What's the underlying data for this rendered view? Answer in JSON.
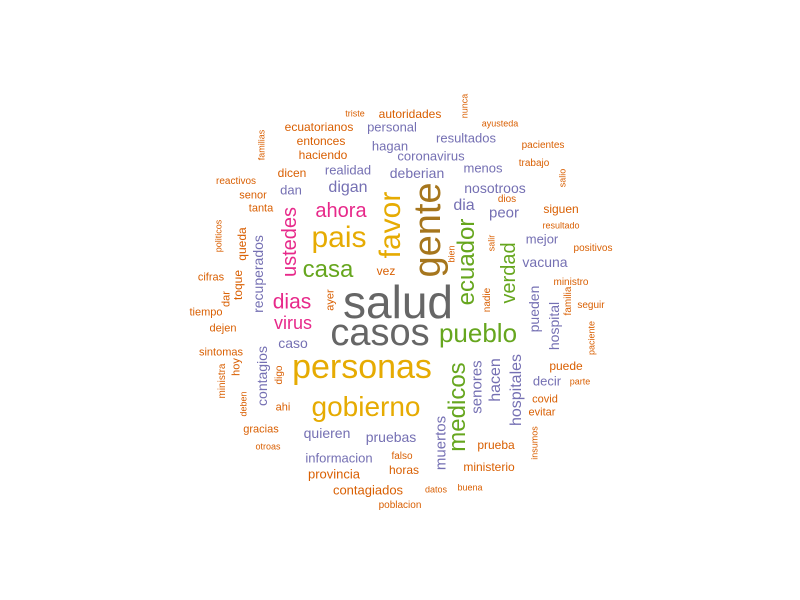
{
  "colors": {
    "gray": "#666666",
    "olive": "#A6761D",
    "gold": "#E6AB02",
    "green": "#66A61E",
    "magenta": "#E7298A",
    "purple": "#7570B3",
    "orange": "#D95F02"
  },
  "words": [
    {
      "text": "salud",
      "color": "gray"
    },
    {
      "text": "casos",
      "color": "gray"
    },
    {
      "text": "gente",
      "color": "olive"
    },
    {
      "text": "personas",
      "color": "gold"
    },
    {
      "text": "gobierno",
      "color": "gold"
    },
    {
      "text": "pais",
      "color": "gold"
    },
    {
      "text": "favor",
      "color": "gold"
    },
    {
      "text": "pueblo",
      "color": "green"
    },
    {
      "text": "casa",
      "color": "green"
    },
    {
      "text": "ecuador",
      "color": "green"
    },
    {
      "text": "medicos",
      "color": "green"
    },
    {
      "text": "verdad",
      "color": "green"
    },
    {
      "text": "ahora",
      "color": "magenta"
    },
    {
      "text": "dias",
      "color": "magenta"
    },
    {
      "text": "virus",
      "color": "magenta"
    },
    {
      "text": "ustedes",
      "color": "magenta"
    },
    {
      "text": "digan",
      "color": "purple"
    },
    {
      "text": "dia",
      "color": "purple"
    },
    {
      "text": "peor",
      "color": "purple"
    },
    {
      "text": "nosotroos",
      "color": "purple"
    },
    {
      "text": "hospitales",
      "color": "purple"
    },
    {
      "text": "hacen",
      "color": "purple"
    },
    {
      "text": "senores",
      "color": "purple"
    },
    {
      "text": "muertos",
      "color": "purple"
    },
    {
      "text": "caso",
      "color": "purple"
    },
    {
      "text": "quieren",
      "color": "purple"
    },
    {
      "text": "pruebas",
      "color": "purple"
    },
    {
      "text": "recuperados",
      "color": "purple"
    },
    {
      "text": "contagios",
      "color": "purple"
    },
    {
      "text": "hospital",
      "color": "purple"
    },
    {
      "text": "pueden",
      "color": "purple"
    },
    {
      "text": "vacuna",
      "color": "purple"
    },
    {
      "text": "decir",
      "color": "purple"
    },
    {
      "text": "mejor",
      "color": "purple"
    },
    {
      "text": "informacion",
      "color": "purple"
    },
    {
      "text": "deberian",
      "color": "purple"
    },
    {
      "text": "realidad",
      "color": "purple"
    },
    {
      "text": "hagan",
      "color": "purple"
    },
    {
      "text": "coronavirus",
      "color": "purple"
    },
    {
      "text": "menos",
      "color": "purple"
    },
    {
      "text": "personal",
      "color": "purple"
    },
    {
      "text": "dan",
      "color": "purple"
    },
    {
      "text": "resultados",
      "color": "purple"
    },
    {
      "text": "autoridades",
      "color": "orange"
    },
    {
      "text": "ecuatorianos",
      "color": "orange"
    },
    {
      "text": "entonces",
      "color": "orange"
    },
    {
      "text": "haciendo",
      "color": "orange"
    },
    {
      "text": "dicen",
      "color": "orange"
    },
    {
      "text": "tanta",
      "color": "orange"
    },
    {
      "text": "senor",
      "color": "orange"
    },
    {
      "text": "reactivos",
      "color": "orange"
    },
    {
      "text": "queda",
      "color": "orange"
    },
    {
      "text": "toque",
      "color": "orange"
    },
    {
      "text": "cifras",
      "color": "orange"
    },
    {
      "text": "dar",
      "color": "orange"
    },
    {
      "text": "tiempo",
      "color": "orange"
    },
    {
      "text": "dejen",
      "color": "orange"
    },
    {
      "text": "sintomas",
      "color": "orange"
    },
    {
      "text": "ministra",
      "color": "orange"
    },
    {
      "text": "hoy",
      "color": "orange"
    },
    {
      "text": "deben",
      "color": "orange"
    },
    {
      "text": "ahi",
      "color": "orange"
    },
    {
      "text": "gracias",
      "color": "orange"
    },
    {
      "text": "otroas",
      "color": "orange"
    },
    {
      "text": "digo",
      "color": "orange"
    },
    {
      "text": "provincia",
      "color": "orange"
    },
    {
      "text": "contagiados",
      "color": "orange"
    },
    {
      "text": "horas",
      "color": "orange"
    },
    {
      "text": "falso",
      "color": "orange"
    },
    {
      "text": "datos",
      "color": "orange"
    },
    {
      "text": "buena",
      "color": "orange"
    },
    {
      "text": "poblacion",
      "color": "orange"
    },
    {
      "text": "ministerio",
      "color": "orange"
    },
    {
      "text": "prueba",
      "color": "orange"
    },
    {
      "text": "insumos",
      "color": "orange"
    },
    {
      "text": "evitar",
      "color": "orange"
    },
    {
      "text": "covid",
      "color": "orange"
    },
    {
      "text": "parte",
      "color": "orange"
    },
    {
      "text": "puede",
      "color": "orange"
    },
    {
      "text": "paciente",
      "color": "orange"
    },
    {
      "text": "seguir",
      "color": "orange"
    },
    {
      "text": "familia",
      "color": "orange"
    },
    {
      "text": "ministro",
      "color": "orange"
    },
    {
      "text": "positivos",
      "color": "orange"
    },
    {
      "text": "resultado",
      "color": "orange"
    },
    {
      "text": "siguen",
      "color": "orange"
    },
    {
      "text": "dios",
      "color": "orange"
    },
    {
      "text": "salio",
      "color": "orange"
    },
    {
      "text": "trabajo",
      "color": "orange"
    },
    {
      "text": "pacientes",
      "color": "orange"
    },
    {
      "text": "ayusteda",
      "color": "orange"
    },
    {
      "text": "nunca",
      "color": "orange"
    },
    {
      "text": "triste",
      "color": "orange"
    },
    {
      "text": "familias",
      "color": "orange"
    },
    {
      "text": "politicos",
      "color": "orange"
    },
    {
      "text": "ayer",
      "color": "orange"
    },
    {
      "text": "vez",
      "color": "orange"
    },
    {
      "text": "bien",
      "color": "orange"
    },
    {
      "text": "salir",
      "color": "orange"
    },
    {
      "text": "nadie",
      "color": "orange"
    }
  ]
}
